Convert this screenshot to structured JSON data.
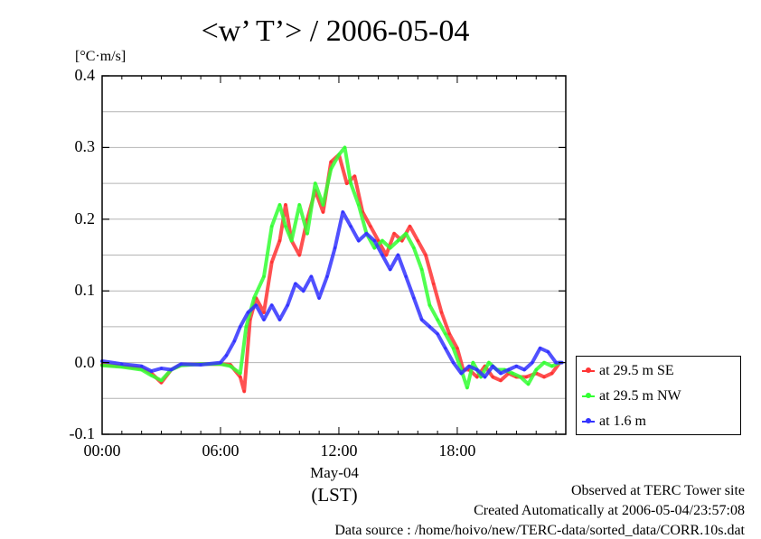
{
  "page": {
    "title": "<w’ T’> / 2006-05-04",
    "footer": {
      "observed": "Observed at TERC Tower site",
      "created": "Created Automatically at 2006-05-04/23:57:08",
      "source": "Data source : /home/hoivo/new/TERC-data/sorted_data/CORR.10s.dat"
    }
  },
  "chart_data": {
    "type": "line",
    "title": "<w’ T’> / 2006-05-04",
    "ylabel": "[°C·m/s]",
    "xlabel": "(LST)",
    "date_label": "May-04",
    "xlim": [
      0,
      23.5
    ],
    "ylim": [
      -0.1,
      0.4
    ],
    "x_ticks": [
      {
        "value": 0,
        "label": "00:00"
      },
      {
        "value": 6,
        "label": "06:00"
      },
      {
        "value": 12,
        "label": "12:00"
      },
      {
        "value": 18,
        "label": "18:00"
      }
    ],
    "y_ticks": [
      {
        "value": -0.1,
        "label": "-0.1"
      },
      {
        "value": 0.0,
        "label": "0.0"
      },
      {
        "value": 0.1,
        "label": "0.1"
      },
      {
        "value": 0.2,
        "label": "0.2"
      },
      {
        "value": 0.3,
        "label": "0.3"
      },
      {
        "value": 0.4,
        "label": "0.4"
      }
    ],
    "grid": true,
    "legend_position": "right-bottom",
    "series": [
      {
        "name": "at 29.5 m SE",
        "color": "#ff3333",
        "points": [
          [
            0,
            -0.003
          ],
          [
            1,
            -0.005
          ],
          [
            2,
            -0.008
          ],
          [
            2.5,
            -0.015
          ],
          [
            3,
            -0.028
          ],
          [
            3.5,
            -0.01
          ],
          [
            4,
            -0.003
          ],
          [
            5,
            -0.002
          ],
          [
            6,
            -0.002
          ],
          [
            6.5,
            -0.003
          ],
          [
            7,
            -0.02
          ],
          [
            7.2,
            -0.04
          ],
          [
            7.5,
            0.06
          ],
          [
            7.8,
            0.09
          ],
          [
            8.2,
            0.07
          ],
          [
            8.6,
            0.14
          ],
          [
            9,
            0.17
          ],
          [
            9.3,
            0.22
          ],
          [
            9.6,
            0.17
          ],
          [
            10,
            0.15
          ],
          [
            10.4,
            0.2
          ],
          [
            10.8,
            0.24
          ],
          [
            11.2,
            0.21
          ],
          [
            11.6,
            0.28
          ],
          [
            12,
            0.29
          ],
          [
            12.4,
            0.25
          ],
          [
            12.8,
            0.26
          ],
          [
            13.2,
            0.21
          ],
          [
            13.6,
            0.19
          ],
          [
            14,
            0.17
          ],
          [
            14.4,
            0.15
          ],
          [
            14.8,
            0.18
          ],
          [
            15.2,
            0.17
          ],
          [
            15.6,
            0.19
          ],
          [
            16,
            0.17
          ],
          [
            16.4,
            0.15
          ],
          [
            16.8,
            0.11
          ],
          [
            17.2,
            0.07
          ],
          [
            17.6,
            0.04
          ],
          [
            18,
            0.02
          ],
          [
            18.3,
            -0.01
          ],
          [
            18.6,
            -0.01
          ],
          [
            19,
            -0.02
          ],
          [
            19.4,
            -0.005
          ],
          [
            19.8,
            -0.02
          ],
          [
            20.2,
            -0.025
          ],
          [
            20.6,
            -0.015
          ],
          [
            21,
            -0.02
          ],
          [
            21.5,
            -0.02
          ],
          [
            22,
            -0.015
          ],
          [
            22.4,
            -0.02
          ],
          [
            22.8,
            -0.015
          ],
          [
            23.2,
            0.0
          ]
        ]
      },
      {
        "name": "at 29.5 m NW",
        "color": "#33ff33",
        "points": [
          [
            0,
            -0.004
          ],
          [
            1,
            -0.006
          ],
          [
            2,
            -0.01
          ],
          [
            2.5,
            -0.018
          ],
          [
            3,
            -0.025
          ],
          [
            3.5,
            -0.01
          ],
          [
            4,
            -0.004
          ],
          [
            5,
            -0.002
          ],
          [
            6,
            -0.002
          ],
          [
            6.5,
            -0.005
          ],
          [
            7,
            -0.015
          ],
          [
            7.3,
            0.05
          ],
          [
            7.7,
            0.09
          ],
          [
            8.2,
            0.12
          ],
          [
            8.6,
            0.19
          ],
          [
            9,
            0.22
          ],
          [
            9.3,
            0.19
          ],
          [
            9.6,
            0.17
          ],
          [
            10,
            0.22
          ],
          [
            10.4,
            0.18
          ],
          [
            10.8,
            0.25
          ],
          [
            11.2,
            0.22
          ],
          [
            11.6,
            0.27
          ],
          [
            12,
            0.29
          ],
          [
            12.3,
            0.3
          ],
          [
            12.6,
            0.25
          ],
          [
            13,
            0.22
          ],
          [
            13.4,
            0.18
          ],
          [
            13.8,
            0.16
          ],
          [
            14.2,
            0.17
          ],
          [
            14.6,
            0.16
          ],
          [
            15,
            0.17
          ],
          [
            15.4,
            0.18
          ],
          [
            15.8,
            0.16
          ],
          [
            16.2,
            0.13
          ],
          [
            16.6,
            0.08
          ],
          [
            17,
            0.06
          ],
          [
            17.4,
            0.04
          ],
          [
            17.8,
            0.02
          ],
          [
            18.2,
            -0.01
          ],
          [
            18.5,
            -0.035
          ],
          [
            18.8,
            0.0
          ],
          [
            19.2,
            -0.02
          ],
          [
            19.6,
            0.0
          ],
          [
            20,
            -0.01
          ],
          [
            20.4,
            -0.01
          ],
          [
            20.8,
            -0.015
          ],
          [
            21.2,
            -0.02
          ],
          [
            21.6,
            -0.03
          ],
          [
            22,
            -0.01
          ],
          [
            22.4,
            0.0
          ],
          [
            22.8,
            -0.005
          ],
          [
            23.2,
            0.0
          ]
        ]
      },
      {
        "name": "at 1.6 m",
        "color": "#3333ff",
        "points": [
          [
            0,
            0.002
          ],
          [
            1,
            -0.002
          ],
          [
            2,
            -0.005
          ],
          [
            2.5,
            -0.012
          ],
          [
            3,
            -0.008
          ],
          [
            3.5,
            -0.01
          ],
          [
            4,
            -0.002
          ],
          [
            5,
            -0.003
          ],
          [
            6,
            0.0
          ],
          [
            6.3,
            0.01
          ],
          [
            6.7,
            0.03
          ],
          [
            7,
            0.05
          ],
          [
            7.4,
            0.07
          ],
          [
            7.8,
            0.08
          ],
          [
            8.2,
            0.06
          ],
          [
            8.6,
            0.08
          ],
          [
            9,
            0.06
          ],
          [
            9.4,
            0.08
          ],
          [
            9.8,
            0.11
          ],
          [
            10.2,
            0.1
          ],
          [
            10.6,
            0.12
          ],
          [
            11,
            0.09
          ],
          [
            11.4,
            0.12
          ],
          [
            11.8,
            0.16
          ],
          [
            12.2,
            0.21
          ],
          [
            12.6,
            0.19
          ],
          [
            13,
            0.17
          ],
          [
            13.4,
            0.18
          ],
          [
            13.8,
            0.17
          ],
          [
            14.2,
            0.15
          ],
          [
            14.6,
            0.13
          ],
          [
            15,
            0.15
          ],
          [
            15.4,
            0.12
          ],
          [
            15.8,
            0.09
          ],
          [
            16.2,
            0.06
          ],
          [
            16.6,
            0.05
          ],
          [
            17,
            0.04
          ],
          [
            17.4,
            0.02
          ],
          [
            17.8,
            0.0
          ],
          [
            18.2,
            -0.015
          ],
          [
            18.6,
            -0.005
          ],
          [
            19,
            -0.01
          ],
          [
            19.4,
            -0.02
          ],
          [
            19.8,
            -0.005
          ],
          [
            20.2,
            -0.015
          ],
          [
            20.6,
            -0.01
          ],
          [
            21,
            -0.005
          ],
          [
            21.4,
            -0.01
          ],
          [
            21.8,
            0.0
          ],
          [
            22.2,
            0.02
          ],
          [
            22.6,
            0.015
          ],
          [
            23,
            0.0
          ],
          [
            23.3,
            0.0
          ]
        ]
      }
    ]
  }
}
